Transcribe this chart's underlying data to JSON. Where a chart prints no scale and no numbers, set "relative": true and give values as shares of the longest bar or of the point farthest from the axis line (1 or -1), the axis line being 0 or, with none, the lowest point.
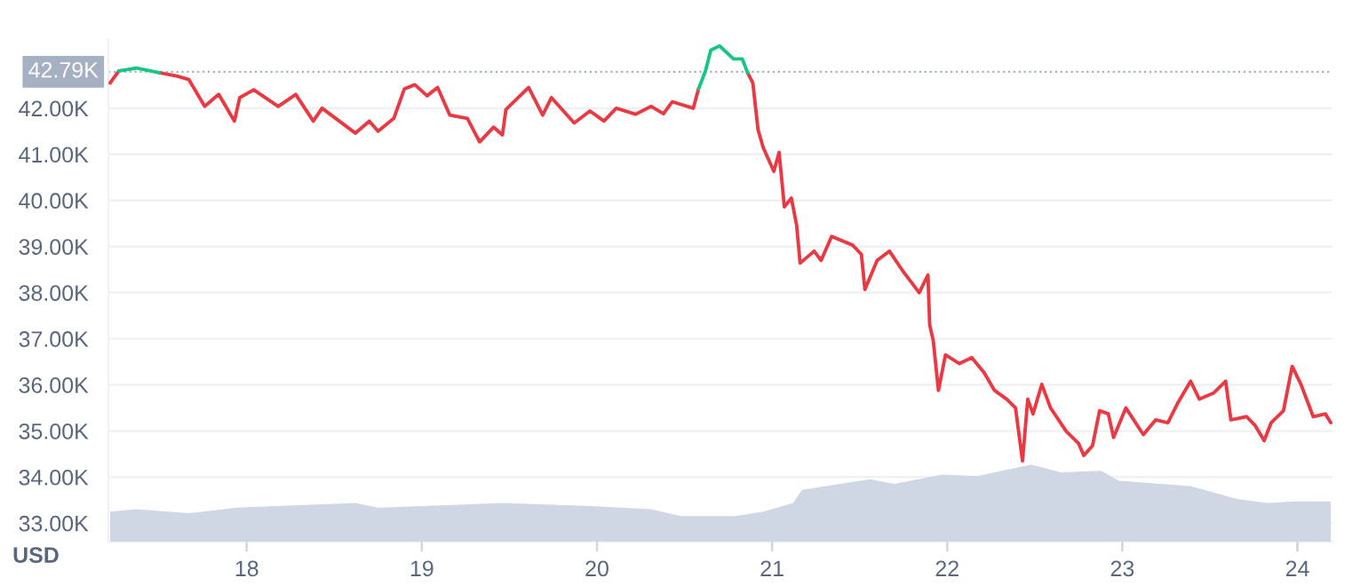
{
  "chart_data": [
    {
      "type": "line",
      "ylabel": "USD",
      "x": [
        17.22,
        17.27,
        17.37,
        17.5,
        17.6,
        17.67,
        17.76,
        17.84,
        17.93,
        17.96,
        18.04,
        18.18,
        18.28,
        18.38,
        18.43,
        18.62,
        18.7,
        18.75,
        18.84,
        18.9,
        18.96,
        19.03,
        19.09,
        19.16,
        19.26,
        19.33,
        19.41,
        19.46,
        19.48,
        19.55,
        19.61,
        19.69,
        19.74,
        19.87,
        19.96,
        20.04,
        20.11,
        20.22,
        20.31,
        20.38,
        20.43,
        20.55,
        20.58,
        20.62,
        20.65,
        20.7,
        20.78,
        20.83,
        20.86,
        20.89,
        20.92,
        20.95,
        21.01,
        21.04,
        21.07,
        21.11,
        21.14,
        21.16,
        21.24,
        21.28,
        21.34,
        21.46,
        21.51,
        21.53,
        21.6,
        21.67,
        21.75,
        21.84,
        21.89,
        21.9,
        21.92,
        21.95,
        21.99,
        22.07,
        22.14,
        22.21,
        22.27,
        22.34,
        22.39,
        22.43,
        22.46,
        22.49,
        22.54,
        22.59,
        22.68,
        22.75,
        22.78,
        22.83,
        22.87,
        22.92,
        22.95,
        23.02,
        23.12,
        23.19,
        23.26,
        23.32,
        23.39,
        23.44,
        23.52,
        23.59,
        23.62,
        23.71,
        23.76,
        23.81,
        23.85,
        23.92,
        23.97,
        24.02,
        24.09,
        24.16,
        24.19
      ],
      "series": [
        {
          "color": "#ea3943",
          "values": [
            42550,
            42810,
            null,
            42770,
            42700,
            42620,
            42040,
            42300,
            41720,
            42230,
            42400,
            42040,
            42300,
            41720,
            42000,
            41460,
            41720,
            41500,
            41780,
            42420,
            42510,
            42270,
            42450,
            41850,
            41780,
            41270,
            41590,
            41420,
            41970,
            42230,
            42450,
            41850,
            42230,
            41680,
            41940,
            41720,
            42000,
            41870,
            42040,
            41880,
            42140,
            42000,
            42420,
            null,
            null,
            null,
            null,
            null,
            42770,
            42550,
            41530,
            41140,
            40630,
            41040,
            39860,
            40050,
            39470,
            38640,
            38900,
            38700,
            39220,
            39030,
            38830,
            38070,
            38700,
            38900,
            38450,
            38000,
            38380,
            37300,
            36970,
            35880,
            36650,
            36460,
            36590,
            36270,
            35880,
            35690,
            35500,
            34350,
            35690,
            35370,
            36010,
            35500,
            34990,
            34730,
            34470,
            34680,
            35440,
            35370,
            34860,
            35500,
            34920,
            35240,
            35180,
            35630,
            36080,
            35690,
            35820,
            36080,
            35240,
            35310,
            35110,
            34790,
            35180,
            35440,
            36400,
            36010,
            35310,
            35370,
            35180
          ]
        },
        {
          "color": "#16c784",
          "values": [
            null,
            42810,
            42870,
            42770,
            null,
            null,
            null,
            null,
            null,
            null,
            null,
            null,
            null,
            null,
            null,
            null,
            null,
            null,
            null,
            null,
            null,
            null,
            null,
            null,
            null,
            null,
            null,
            null,
            null,
            null,
            null,
            null,
            null,
            null,
            null,
            null,
            null,
            null,
            null,
            null,
            null,
            null,
            42420,
            42810,
            43260,
            43350,
            43070,
            43070,
            42770,
            null,
            null,
            null,
            null,
            null,
            null,
            null,
            null,
            null,
            null,
            null,
            null,
            null,
            null,
            null,
            null,
            null,
            null,
            null,
            null,
            null,
            null,
            null,
            null,
            null,
            null,
            null,
            null,
            null,
            null,
            null,
            null,
            null,
            null,
            null,
            null,
            null,
            null,
            null,
            null,
            null,
            null,
            null,
            null,
            null,
            null,
            null,
            null,
            null,
            null,
            null,
            null,
            null,
            null,
            null,
            null,
            null,
            null,
            null,
            null,
            null,
            null
          ]
        }
      ],
      "xlim": [
        17.21,
        24.2
      ],
      "xticks": [
        18,
        19,
        20,
        21,
        22,
        23,
        24
      ],
      "ylim": [
        32600,
        43500
      ],
      "yticks": [
        {
          "value": 33000,
          "label": "33.00K"
        },
        {
          "value": 34000,
          "label": "34.00K"
        },
        {
          "value": 35000,
          "label": "35.00K"
        },
        {
          "value": 36000,
          "label": "36.00K"
        },
        {
          "value": 37000,
          "label": "37.00K"
        },
        {
          "value": 38000,
          "label": "38.00K"
        },
        {
          "value": 39000,
          "label": "39.00K"
        },
        {
          "value": 40000,
          "label": "40.00K"
        },
        {
          "value": 41000,
          "label": "41.00K"
        },
        {
          "value": 42000,
          "label": "42.00K"
        }
      ],
      "ref_lines": [
        {
          "axis": "y",
          "value": 42790,
          "label": "42.79K",
          "color": "#a6b0c3",
          "line_style": "dotted"
        }
      ],
      "grid": "y"
    },
    {
      "type": "area",
      "relative": true,
      "color": "#cfd6e4",
      "tick_labels": false,
      "x": [
        17.22,
        17.37,
        17.67,
        17.94,
        18.62,
        18.75,
        19.46,
        19.97,
        20.31,
        20.48,
        20.79,
        20.95,
        21.12,
        21.17,
        21.56,
        21.7,
        21.97,
        22.17,
        22.48,
        22.65,
        22.88,
        22.98,
        23.39,
        23.66,
        23.83,
        23.97,
        24.19
      ],
      "values": [
        0.39,
        0.42,
        0.37,
        0.44,
        0.5,
        0.44,
        0.5,
        0.46,
        0.42,
        0.33,
        0.33,
        0.39,
        0.5,
        0.67,
        0.81,
        0.75,
        0.87,
        0.85,
        1,
        0.9,
        0.92,
        0.79,
        0.72,
        0.55,
        0.5,
        0.52,
        0.52
      ],
      "xlim": [
        17.21,
        24.2
      ]
    }
  ]
}
